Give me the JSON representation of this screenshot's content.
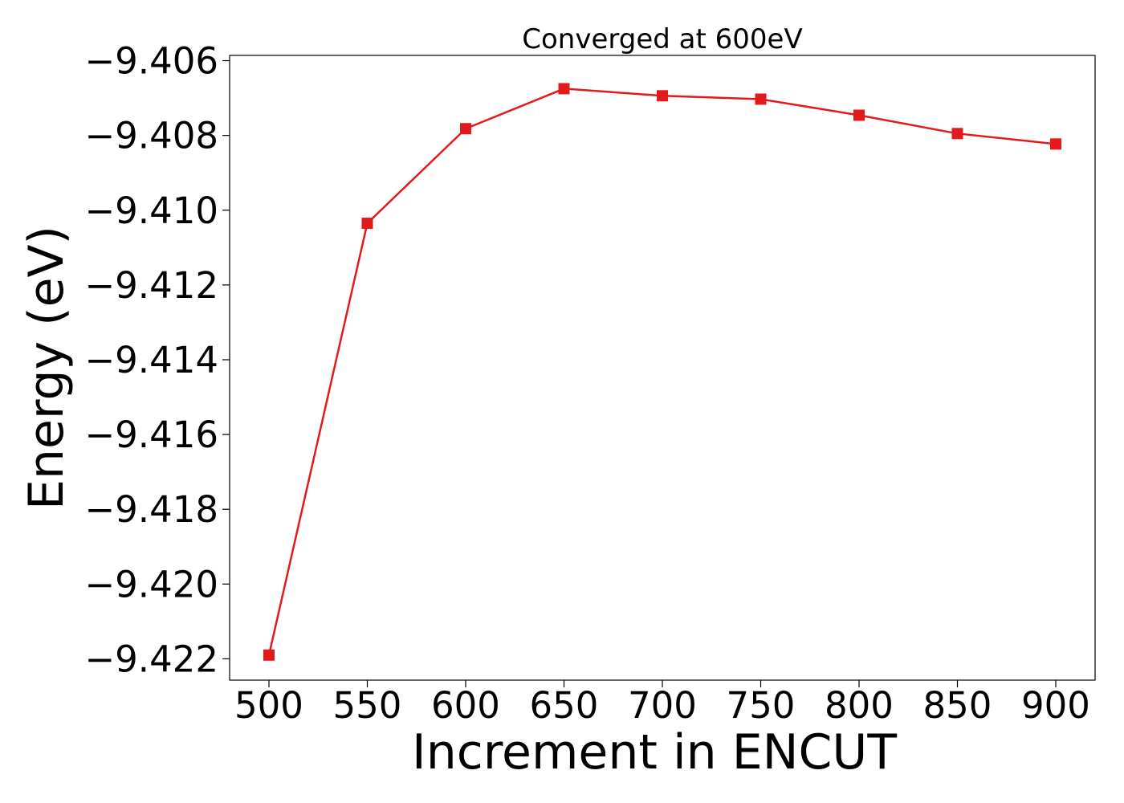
{
  "chart_data": {
    "type": "line",
    "title": "Converged at 600eV",
    "xlabel": "Increment in ENCUT",
    "ylabel": "Energy (eV)",
    "x": [
      500,
      550,
      600,
      650,
      700,
      750,
      800,
      850,
      900
    ],
    "series": [
      {
        "values": [
          -9.4219,
          -9.41035,
          -9.40782,
          -9.40675,
          -9.40694,
          -9.40703,
          -9.40746,
          -9.40795,
          -9.40823
        ],
        "color": "#e31a1c",
        "marker": "square"
      }
    ],
    "xticks": [
      500,
      550,
      600,
      650,
      700,
      750,
      800,
      850,
      900
    ],
    "xtick_labels": [
      "500",
      "550",
      "600",
      "650",
      "700",
      "750",
      "800",
      "850",
      "900"
    ],
    "yticks": [
      -9.406,
      -9.408,
      -9.41,
      -9.412,
      -9.414,
      -9.416,
      -9.418,
      -9.42,
      -9.422
    ],
    "ytick_labels": [
      "−9.406",
      "−9.408",
      "−9.410",
      "−9.412",
      "−9.414",
      "−9.416",
      "−9.418",
      "−9.420",
      "−9.422"
    ],
    "xlim": [
      480,
      920
    ],
    "ylim": [
      -9.42257,
      -9.40586
    ],
    "grid": false,
    "legend": "none"
  }
}
